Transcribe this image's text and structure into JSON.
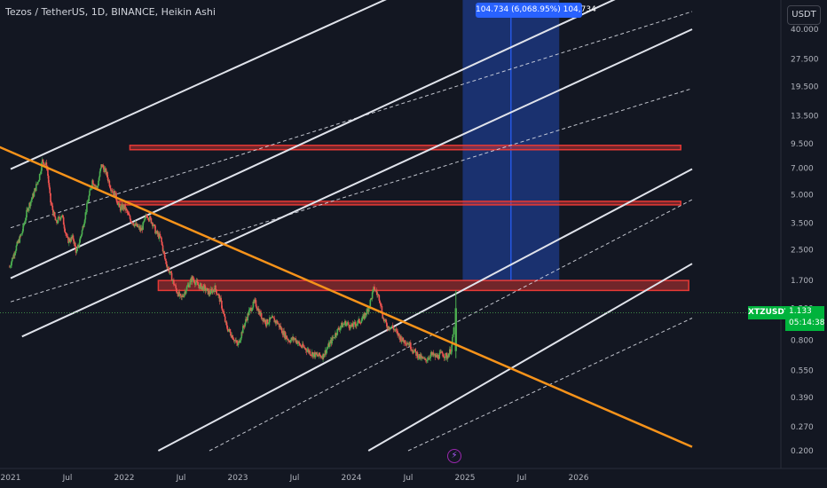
{
  "header": {
    "title": "Tezos / TetherUS, 1D, BINANCE, Heikin Ashi",
    "scale_button": "USDT"
  },
  "measure": {
    "label": "104.734 (6,068.95%) 104,734"
  },
  "price": {
    "symbol": "XTZUSDT",
    "value": "1.133",
    "countdown": "05:14:38"
  },
  "icons": {
    "lightning": "lightning-icon"
  },
  "colors": {
    "background": "#131722",
    "bull": "#26a69a",
    "bull_bright": "#4caf50",
    "bear": "#ef5350",
    "trend": "#f7931a",
    "channel": "#e0e3eb",
    "resistance": "#e53935",
    "measure": "#2962ff",
    "price_badge": "#00b33c"
  },
  "chart_data": {
    "type": "candlestick",
    "scale": "log",
    "y_ticks": [
      "40.000",
      "27.500",
      "19.500",
      "13.500",
      "9.500",
      "7.000",
      "5.000",
      "3.500",
      "2.500",
      "1.700",
      "1.200",
      "0.800",
      "0.550",
      "0.390",
      "0.270",
      "0.200"
    ],
    "x_ticks": [
      "2021",
      "Jul",
      "2022",
      "Jul",
      "2023",
      "Jul",
      "2024",
      "Jul",
      "2025",
      "Jul",
      "2026"
    ],
    "resistance_zones": [
      {
        "x_start": 2022.05,
        "x_end": 2026.9,
        "y_low": 8.8,
        "y_high": 9.3
      },
      {
        "x_start": 2021.95,
        "x_end": 2026.9,
        "y_low": 4.4,
        "y_high": 4.6
      },
      {
        "x_start": 2022.3,
        "x_end": 2026.97,
        "y_low": 1.5,
        "y_high": 1.7
      }
    ],
    "trendline": {
      "from": [
        2020.85,
        9.4
      ],
      "to": [
        2027.0,
        0.21
      ]
    },
    "channel_lines": [
      {
        "from": [
          2021.0,
          6.9
        ],
        "to": [
          2024.35,
          60
        ]
      },
      {
        "from": [
          2021.0,
          1.75
        ],
        "to": [
          2026.8,
          80
        ]
      },
      {
        "from": [
          2021.1,
          0.84
        ],
        "to": [
          2027.0,
          40
        ]
      },
      {
        "from": [
          2022.3,
          0.2
        ],
        "to": [
          2027.0,
          6.9
        ]
      },
      {
        "from": [
          2024.15,
          0.2
        ],
        "to": [
          2027.0,
          2.1
        ]
      }
    ],
    "channel_dashed": [
      {
        "from": [
          2021.0,
          3.3
        ],
        "to": [
          2027.0,
          50
        ]
      },
      {
        "from": [
          2021.0,
          1.3
        ],
        "to": [
          2027.0,
          19
        ]
      },
      {
        "from": [
          2022.75,
          0.2
        ],
        "to": [
          2027.0,
          4.7
        ]
      },
      {
        "from": [
          2024.5,
          0.2
        ],
        "to": [
          2027.0,
          1.06
        ]
      }
    ],
    "measure": {
      "x_start": 2024.98,
      "x_end": 2025.83,
      "y_low": 1.7,
      "y_high": 104.7
    },
    "series": [
      {
        "values": [
          [
            2020.99,
            2.02
          ],
          [
            2021.05,
            2.6
          ],
          [
            2021.1,
            3.1
          ],
          [
            2021.15,
            4.2
          ],
          [
            2021.2,
            5.0
          ],
          [
            2021.25,
            6.2
          ],
          [
            2021.28,
            7.7
          ],
          [
            2021.32,
            7.1
          ],
          [
            2021.35,
            4.6
          ],
          [
            2021.4,
            3.5
          ],
          [
            2021.45,
            3.9
          ],
          [
            2021.5,
            2.8
          ],
          [
            2021.55,
            2.9
          ],
          [
            2021.58,
            2.4
          ],
          [
            2021.63,
            3.2
          ],
          [
            2021.68,
            4.6
          ],
          [
            2021.72,
            6.0
          ],
          [
            2021.76,
            5.4
          ],
          [
            2021.8,
            7.3
          ],
          [
            2021.84,
            6.6
          ],
          [
            2021.88,
            5.5
          ],
          [
            2021.92,
            5.0
          ],
          [
            2021.96,
            4.2
          ],
          [
            2022.0,
            4.3
          ],
          [
            2022.05,
            3.7
          ],
          [
            2022.1,
            3.4
          ],
          [
            2022.15,
            3.2
          ],
          [
            2022.2,
            3.9
          ],
          [
            2022.25,
            3.5
          ],
          [
            2022.28,
            3.1
          ],
          [
            2022.32,
            2.9
          ],
          [
            2022.36,
            2.2
          ],
          [
            2022.42,
            1.75
          ],
          [
            2022.46,
            1.5
          ],
          [
            2022.5,
            1.35
          ],
          [
            2022.55,
            1.55
          ],
          [
            2022.6,
            1.75
          ],
          [
            2022.65,
            1.6
          ],
          [
            2022.7,
            1.55
          ],
          [
            2022.75,
            1.45
          ],
          [
            2022.8,
            1.55
          ],
          [
            2022.85,
            1.3
          ],
          [
            2022.9,
            0.95
          ],
          [
            2022.95,
            0.85
          ],
          [
            2023.0,
            0.75
          ],
          [
            2023.05,
            0.95
          ],
          [
            2023.1,
            1.15
          ],
          [
            2023.15,
            1.3
          ],
          [
            2023.2,
            1.1
          ],
          [
            2023.25,
            1.0
          ],
          [
            2023.3,
            1.05
          ],
          [
            2023.35,
            1.0
          ],
          [
            2023.4,
            0.88
          ],
          [
            2023.45,
            0.8
          ],
          [
            2023.5,
            0.82
          ],
          [
            2023.55,
            0.75
          ],
          [
            2023.6,
            0.72
          ],
          [
            2023.65,
            0.68
          ],
          [
            2023.7,
            0.66
          ],
          [
            2023.75,
            0.66
          ],
          [
            2023.8,
            0.75
          ],
          [
            2023.85,
            0.85
          ],
          [
            2023.9,
            0.95
          ],
          [
            2023.95,
            1.0
          ],
          [
            2024.0,
            0.95
          ],
          [
            2024.05,
            1.0
          ],
          [
            2024.1,
            1.05
          ],
          [
            2024.15,
            1.2
          ],
          [
            2024.2,
            1.55
          ],
          [
            2024.25,
            1.35
          ],
          [
            2024.28,
            1.05
          ],
          [
            2024.32,
            0.95
          ],
          [
            2024.36,
            0.95
          ],
          [
            2024.4,
            0.88
          ],
          [
            2024.45,
            0.8
          ],
          [
            2024.5,
            0.78
          ],
          [
            2024.55,
            0.7
          ],
          [
            2024.6,
            0.65
          ],
          [
            2024.65,
            0.62
          ],
          [
            2024.7,
            0.67
          ],
          [
            2024.75,
            0.65
          ],
          [
            2024.8,
            0.68
          ],
          [
            2024.84,
            0.65
          ],
          [
            2024.88,
            0.72
          ],
          [
            2024.92,
            1.133
          ]
        ]
      }
    ]
  }
}
